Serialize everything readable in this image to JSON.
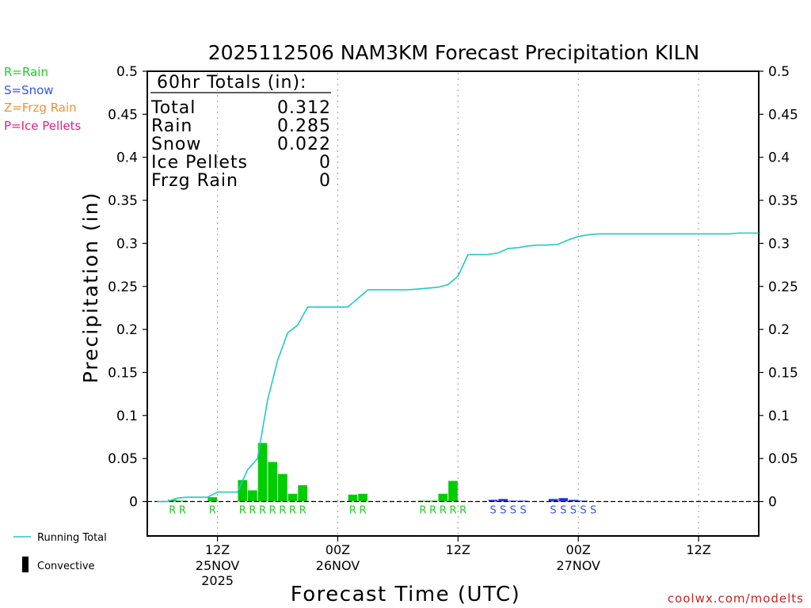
{
  "chart_data": {
    "type": "bar",
    "title": "2025112506 NAM3KM Forecast Precipitation KILN",
    "ylabel": "Precipitation (in)",
    "xlabel": "Forecast Time (UTC)",
    "ylim": [
      -0.04,
      0.5
    ],
    "xlim": [
      -1,
      60
    ],
    "y_ticks": [
      0,
      0.05,
      0.1,
      0.15,
      0.2,
      0.25,
      0.3,
      0.35,
      0.4,
      0.45,
      0.5
    ],
    "y_tick_labels": [
      "0",
      "0.05",
      "0.1",
      "0.15",
      "0.2",
      "0.25",
      "0.3",
      "0.35",
      "0.4",
      "0.45",
      "0.5"
    ],
    "x_ticks": [
      {
        "hour": 6,
        "label": "12Z",
        "date": "25NOV",
        "year": "2025"
      },
      {
        "hour": 18,
        "label": "00Z",
        "date": "26NOV",
        "year": ""
      },
      {
        "hour": 30,
        "label": "12Z",
        "date": "",
        "year": ""
      },
      {
        "hour": 42,
        "label": "00Z",
        "date": "27NOV",
        "year": ""
      },
      {
        "hour": 54,
        "label": "12Z",
        "date": "",
        "year": ""
      }
    ],
    "type_legend": [
      {
        "text": "R=Rain",
        "color": "#22cc22"
      },
      {
        "text": "S=Snow",
        "color": "#3355ee"
      },
      {
        "text": "Z=Frzg Rain",
        "color": "#f09030"
      },
      {
        "text": "P=Ice Pellets",
        "color": "#e0208a"
      }
    ],
    "totals": {
      "header": "60hr Totals (in):",
      "rows": [
        {
          "label": "Total",
          "value": "0.312"
        },
        {
          "label": "Rain",
          "value": "0.285"
        },
        {
          "label": "Snow",
          "value": "0.022"
        },
        {
          "label": "Ice Pellets",
          "value": "0"
        },
        {
          "label": "Frzg Rain",
          "value": "0"
        }
      ]
    },
    "series": [
      {
        "name": "Rain",
        "color": "#00cc00",
        "hours": [
          2,
          3,
          6,
          9,
          10,
          11,
          12,
          13,
          14,
          15,
          20,
          21,
          27,
          28,
          29,
          30
        ],
        "values": [
          0.002,
          0.001,
          0.005,
          0.025,
          0.013,
          0.068,
          0.046,
          0.032,
          0.009,
          0.019,
          0.008,
          0.009,
          0.001,
          0.001,
          0.009,
          0.024
        ]
      },
      {
        "name": "Snow",
        "color": "#2233dd",
        "hours": [
          34,
          35,
          36,
          37,
          40,
          41,
          42,
          43
        ],
        "values": [
          0.002,
          0.003,
          0.001,
          0.001,
          0.003,
          0.004,
          0.002,
          0.001
        ]
      }
    ],
    "running_total": {
      "name": "Running Total",
      "color": "#22c8c8",
      "hours": [
        0,
        1,
        2,
        3,
        4,
        5,
        6,
        7,
        8,
        9,
        10,
        11,
        12,
        13,
        14,
        15,
        16,
        17,
        18,
        19,
        20,
        21,
        22,
        23,
        24,
        25,
        26,
        27,
        28,
        29,
        30,
        31,
        32,
        33,
        34,
        35,
        36,
        37,
        38,
        39,
        40,
        41,
        42,
        43,
        44,
        45,
        46,
        47,
        48,
        49,
        50,
        51,
        52,
        53,
        54,
        55,
        56,
        57,
        58,
        59,
        60
      ],
      "values": [
        0.0,
        0.0,
        0.004,
        0.005,
        0.005,
        0.005,
        0.011,
        0.011,
        0.011,
        0.037,
        0.05,
        0.118,
        0.164,
        0.196,
        0.205,
        0.226,
        0.226,
        0.226,
        0.226,
        0.226,
        0.236,
        0.246,
        0.246,
        0.246,
        0.246,
        0.246,
        0.247,
        0.248,
        0.249,
        0.252,
        0.262,
        0.287,
        0.287,
        0.287,
        0.289,
        0.294,
        0.295,
        0.297,
        0.298,
        0.298,
        0.299,
        0.304,
        0.308,
        0.31,
        0.311,
        0.311,
        0.311,
        0.311,
        0.311,
        0.311,
        0.311,
        0.311,
        0.311,
        0.311,
        0.311,
        0.311,
        0.311,
        0.311,
        0.312,
        0.312,
        0.312
      ]
    },
    "type_markers": [
      {
        "hour": 2,
        "letter": "R",
        "color": "#22cc22"
      },
      {
        "hour": 3,
        "letter": "R",
        "color": "#22cc22"
      },
      {
        "hour": 6,
        "letter": "R",
        "color": "#22cc22"
      },
      {
        "hour": 9,
        "letter": "R",
        "color": "#22cc22"
      },
      {
        "hour": 10,
        "letter": "R",
        "color": "#22cc22"
      },
      {
        "hour": 11,
        "letter": "R",
        "color": "#22cc22"
      },
      {
        "hour": 12,
        "letter": "R",
        "color": "#22cc22"
      },
      {
        "hour": 13,
        "letter": "R",
        "color": "#22cc22"
      },
      {
        "hour": 14,
        "letter": "R",
        "color": "#22cc22"
      },
      {
        "hour": 15,
        "letter": "R",
        "color": "#22cc22"
      },
      {
        "hour": 20,
        "letter": "R",
        "color": "#22cc22"
      },
      {
        "hour": 21,
        "letter": "R",
        "color": "#22cc22"
      },
      {
        "hour": 27,
        "letter": "R",
        "color": "#22cc22"
      },
      {
        "hour": 28,
        "letter": "R",
        "color": "#22cc22"
      },
      {
        "hour": 29,
        "letter": "R",
        "color": "#22cc22"
      },
      {
        "hour": 30,
        "letter": "R",
        "color": "#22cc22"
      },
      {
        "hour": 31,
        "letter": "R",
        "color": "#22cc22"
      },
      {
        "hour": 34,
        "letter": "S",
        "color": "#3355ee"
      },
      {
        "hour": 35,
        "letter": "S",
        "color": "#3355ee"
      },
      {
        "hour": 36,
        "letter": "S",
        "color": "#3355ee"
      },
      {
        "hour": 37,
        "letter": "S",
        "color": "#3355ee"
      },
      {
        "hour": 40,
        "letter": "S",
        "color": "#3355ee"
      },
      {
        "hour": 41,
        "letter": "S",
        "color": "#3355ee"
      },
      {
        "hour": 42,
        "letter": "S",
        "color": "#3355ee"
      },
      {
        "hour": 43,
        "letter": "S",
        "color": "#3355ee"
      },
      {
        "hour": 44,
        "letter": "S",
        "color": "#3355ee"
      }
    ],
    "bottom_legend": {
      "running_total_label": "Running Total",
      "convective_label": "Convective"
    },
    "credit": "coolwx.com/modelts"
  }
}
